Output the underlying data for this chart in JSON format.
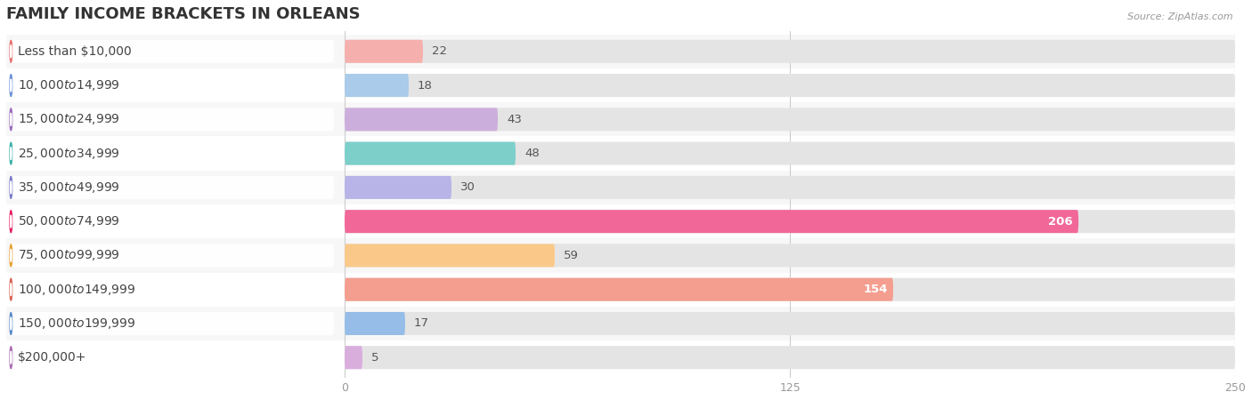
{
  "title": "FAMILY INCOME BRACKETS IN ORLEANS",
  "source": "Source: ZipAtlas.com",
  "categories": [
    "Less than $10,000",
    "$10,000 to $14,999",
    "$15,000 to $24,999",
    "$25,000 to $34,999",
    "$35,000 to $49,999",
    "$50,000 to $74,999",
    "$75,000 to $99,999",
    "$100,000 to $149,999",
    "$150,000 to $199,999",
    "$200,000+"
  ],
  "values": [
    22,
    18,
    43,
    48,
    30,
    206,
    59,
    154,
    17,
    5
  ],
  "bar_colors": [
    "#f5b0ae",
    "#aacbea",
    "#ccaedd",
    "#7dcfca",
    "#b8b4e8",
    "#f16898",
    "#fac98a",
    "#f49e90",
    "#96bde8",
    "#d9aedd"
  ],
  "circle_colors": [
    "#e87070",
    "#6890d8",
    "#9868b8",
    "#38b0a8",
    "#7878c8",
    "#e81860",
    "#e8a030",
    "#d86050",
    "#5888c8",
    "#a868b0"
  ],
  "data_max": 250,
  "xticks": [
    0,
    125,
    250
  ],
  "bg_color": "#ffffff",
  "row_bg_color": "#f0f0f0",
  "bar_track_color": "#e8e8e8",
  "title_fontsize": 13,
  "label_fontsize": 10,
  "value_fontsize": 9.5
}
